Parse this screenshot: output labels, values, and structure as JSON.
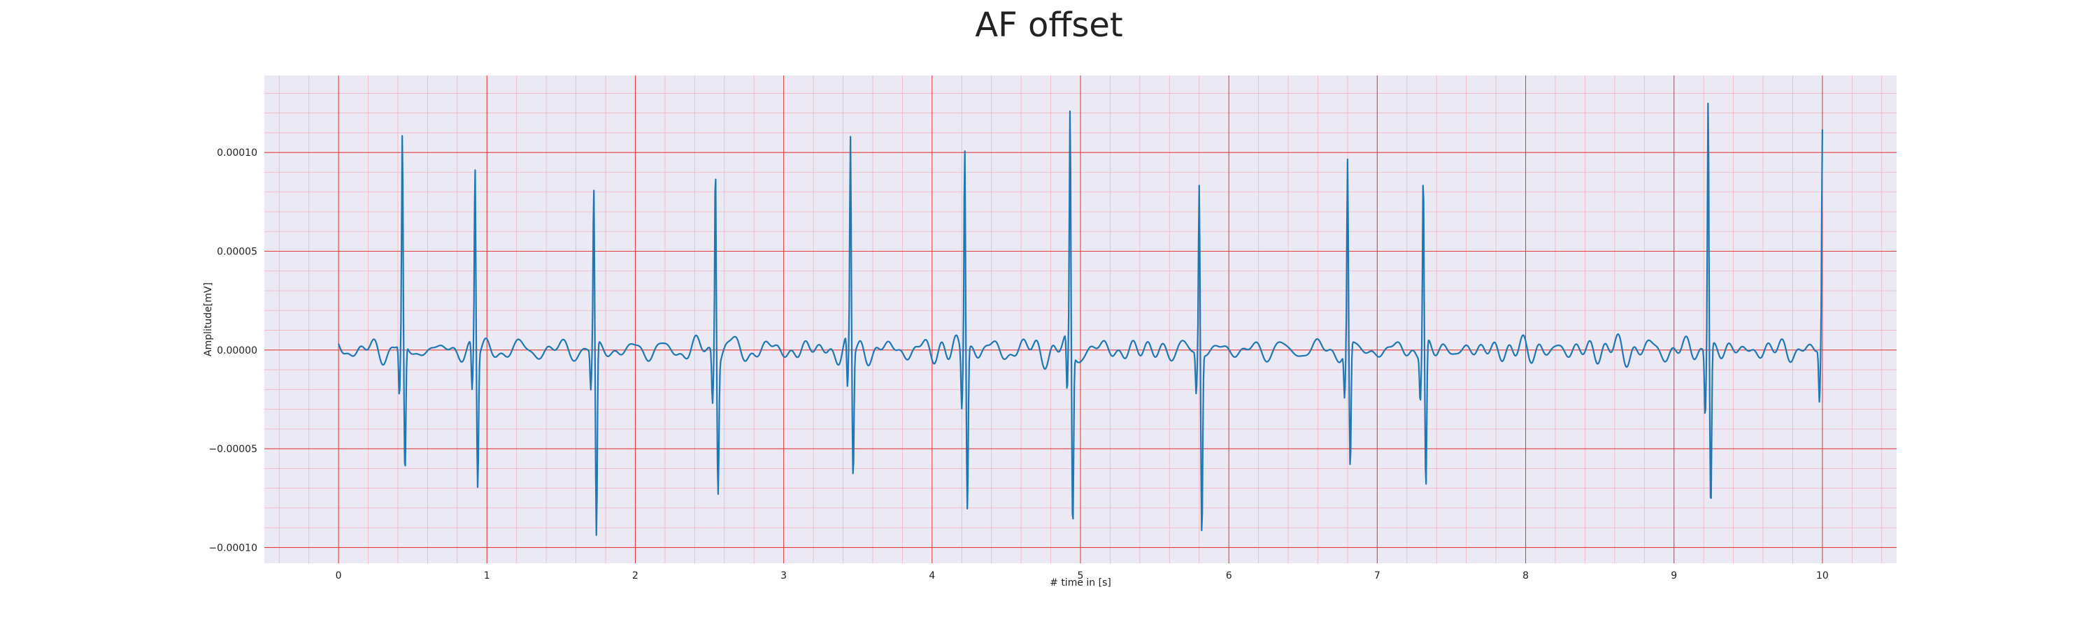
{
  "chart_data": {
    "type": "line",
    "title": "AF offset",
    "xlabel": "# time in [s]",
    "ylabel": "Amplitude[mV]",
    "xlim": [
      -0.5,
      10.5
    ],
    "ylim": [
      -0.000108,
      0.000139
    ],
    "x_ticks": [
      0,
      1,
      2,
      3,
      4,
      5,
      6,
      7,
      8,
      9,
      10
    ],
    "x_tick_labels": [
      "0",
      "1",
      "2",
      "3",
      "4",
      "5",
      "6",
      "7",
      "8",
      "9",
      "10"
    ],
    "y_ticks": [
      -0.0001,
      -5e-05,
      0.0,
      5e-05,
      0.0001
    ],
    "y_tick_labels": [
      "−0.00010",
      "−0.00005",
      "0.00000",
      "0.00005",
      "0.00010"
    ],
    "grid": true,
    "minor_grid": true,
    "colors": {
      "plot_background": "#eae9f4",
      "major_grid": "#e04040",
      "minor_grid": "#f2b4c0",
      "line": "#1f77b4"
    },
    "beats": [
      {
        "t": 0.43,
        "r": 0.000106,
        "s": -6.6e-05
      },
      {
        "t": 0.92,
        "r": 9.4e-05,
        "s": -6.7e-05
      },
      {
        "t": 1.72,
        "r": 8.1e-05,
        "s": -9.8e-05
      },
      {
        "t": 2.54,
        "r": 0.000101,
        "s": -6.5e-05
      },
      {
        "t": 3.45,
        "r": 0.000105,
        "s": -6.4e-05
      },
      {
        "t": 4.22,
        "r": 0.000108,
        "s": -7.9e-05
      },
      {
        "t": 4.93,
        "r": 0.000118,
        "s": -9e-05
      },
      {
        "t": 5.8,
        "r": 8.5e-05,
        "s": -9.2e-05
      },
      {
        "t": 6.8,
        "r": 9.4e-05,
        "s": -6.4e-05
      },
      {
        "t": 7.31,
        "r": 9e-05,
        "s": -7.4e-05
      },
      {
        "t": 9.23,
        "r": 0.000129,
        "s": -8.2e-05
      },
      {
        "t": 10.0,
        "r": 0.000109,
        "s": -1.5e-05
      }
    ],
    "baseline": {
      "t_start": 0.0,
      "t_end": 10.0,
      "noise_amplitude": 1e-05
    }
  }
}
